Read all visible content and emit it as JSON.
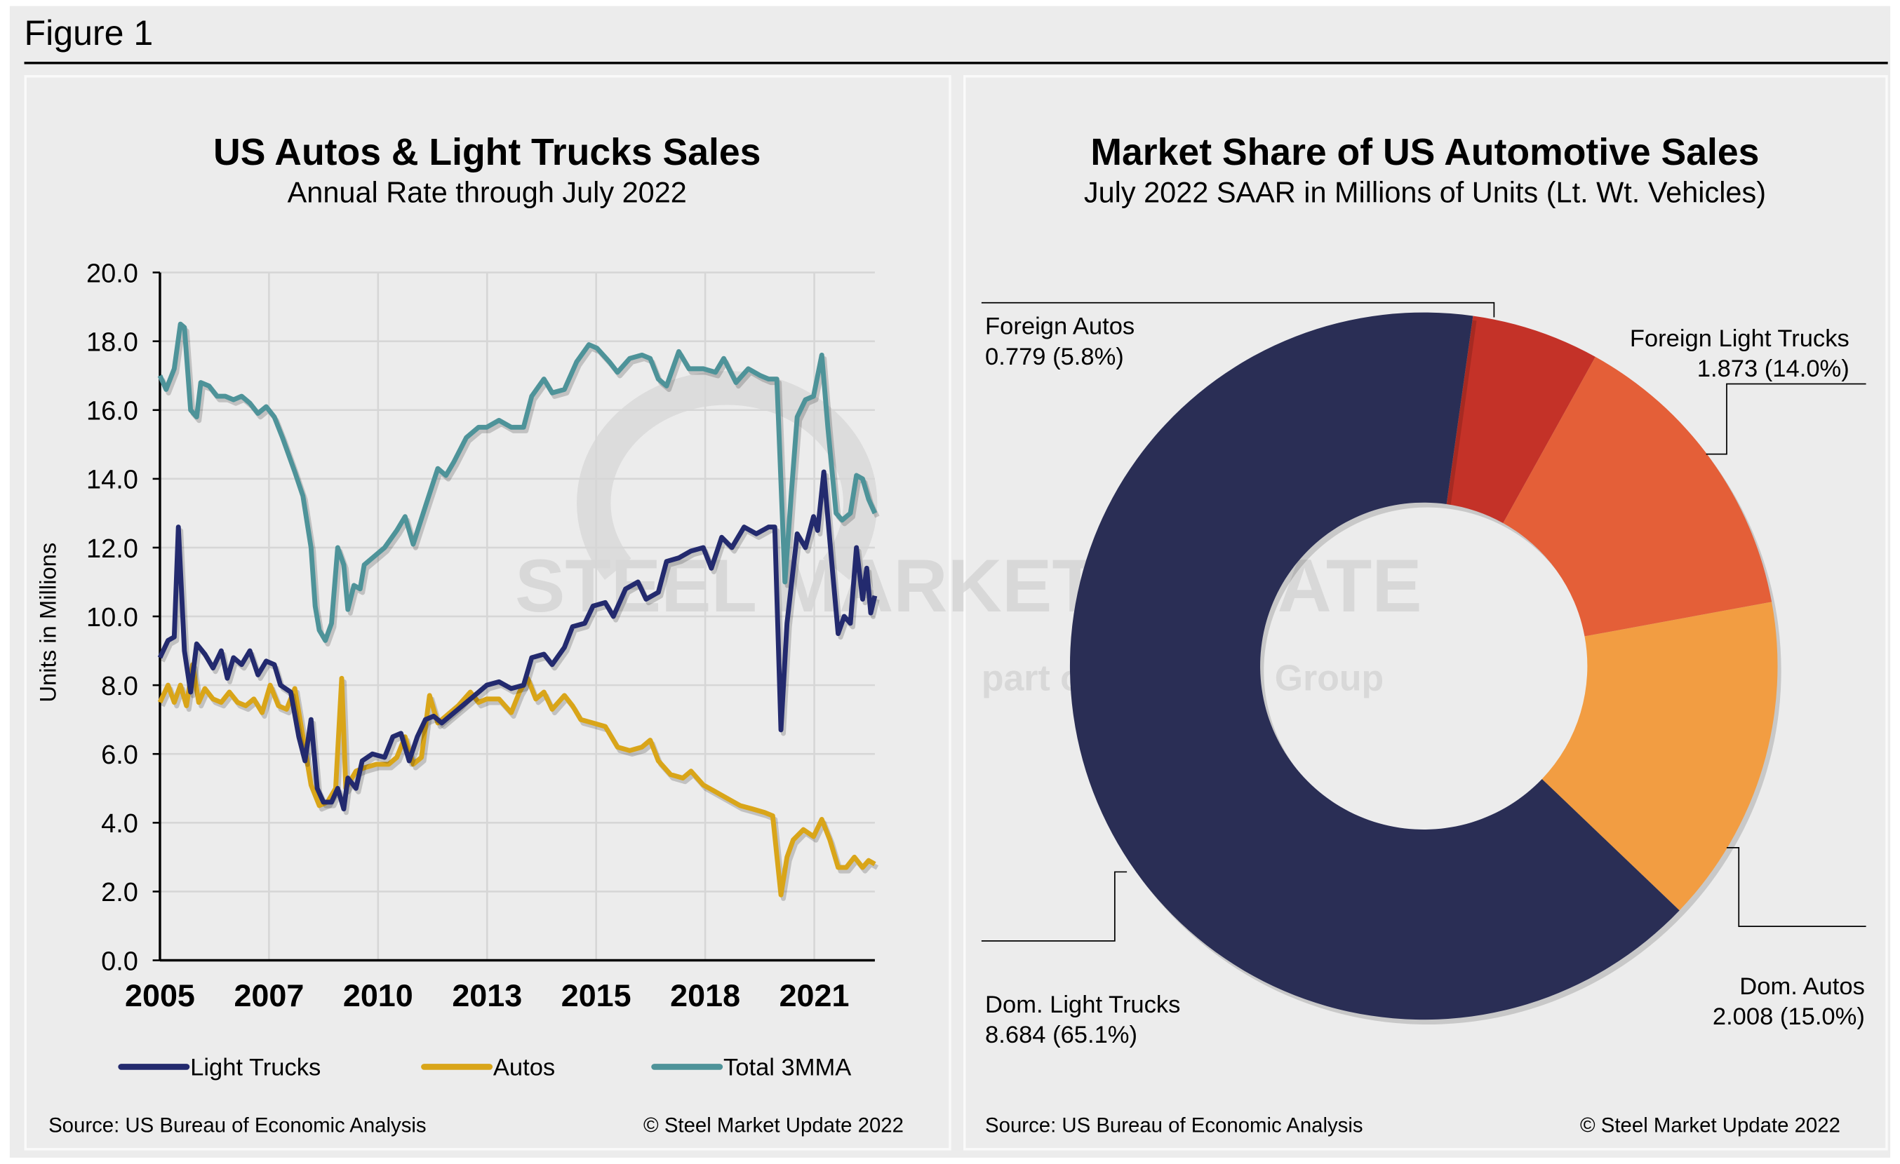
{
  "figure_title": "Figure 1",
  "watermark": {
    "brand": "STEEL MARKET UPDATE",
    "tagline_pre": "part of the",
    "tagline_logo": "CRU",
    "tagline_post": "Group"
  },
  "chart_data": [
    {
      "type": "line",
      "title": "US Autos & Light Trucks Sales",
      "subtitle": "Annual Rate through July 2022",
      "xlabel": "",
      "ylabel": "Units in Millions",
      "xlim": [
        2005.0,
        2022.5
      ],
      "ylim": [
        0,
        20
      ],
      "yticks": [
        "0.0",
        "2.0",
        "4.0",
        "6.0",
        "8.0",
        "10.0",
        "12.0",
        "14.0",
        "16.0",
        "18.0",
        "20.0"
      ],
      "xticks": [
        "2005",
        "2007",
        "2010",
        "2013",
        "2015",
        "2018",
        "2021"
      ],
      "grid": true,
      "legend_position": "bottom",
      "source": "Source: US Bureau of Economic Analysis",
      "copyright": "© Steel Market Update 2022",
      "series": [
        {
          "name": "Light Trucks",
          "color": "#232a6e",
          "x": [
            2005.0,
            2005.2,
            2005.35,
            2005.45,
            2005.6,
            2005.75,
            2005.9,
            2006.1,
            2006.3,
            2006.5,
            2006.65,
            2006.8,
            2007.0,
            2007.2,
            2007.4,
            2007.6,
            2007.8,
            2007.95,
            2008.2,
            2008.4,
            2008.55,
            2008.7,
            2008.85,
            2009.0,
            2009.2,
            2009.35,
            2009.5,
            2009.6,
            2009.8,
            2009.95,
            2010.2,
            2010.5,
            2010.7,
            2010.9,
            2011.1,
            2011.3,
            2011.5,
            2011.7,
            2011.9,
            2012.2,
            2012.5,
            2012.8,
            2013.0,
            2013.3,
            2013.6,
            2013.9,
            2014.1,
            2014.4,
            2014.6,
            2014.9,
            2015.1,
            2015.4,
            2015.6,
            2015.9,
            2016.1,
            2016.4,
            2016.7,
            2016.9,
            2017.2,
            2017.4,
            2017.7,
            2018.0,
            2018.3,
            2018.5,
            2018.75,
            2019.0,
            2019.3,
            2019.6,
            2019.9,
            2020.05,
            2020.2,
            2020.35,
            2020.6,
            2020.8,
            2021.0,
            2021.1,
            2021.25,
            2021.45,
            2021.6,
            2021.75,
            2021.9,
            2022.05,
            2022.2,
            2022.3,
            2022.4,
            2022.5
          ],
          "y": [
            8.8,
            9.3,
            9.4,
            12.6,
            9.0,
            7.8,
            9.2,
            8.9,
            8.5,
            9.0,
            8.2,
            8.8,
            8.6,
            9.0,
            8.3,
            8.7,
            8.6,
            8.0,
            7.8,
            6.5,
            5.8,
            7.0,
            5.0,
            4.6,
            4.6,
            5.0,
            4.4,
            5.3,
            5.0,
            5.8,
            6.0,
            5.9,
            6.5,
            6.6,
            5.8,
            6.5,
            7.0,
            7.1,
            6.9,
            7.2,
            7.5,
            7.8,
            8.0,
            8.1,
            7.9,
            8.0,
            8.8,
            8.9,
            8.6,
            9.1,
            9.7,
            9.8,
            10.3,
            10.4,
            10.0,
            10.8,
            11.0,
            10.5,
            10.7,
            11.6,
            11.7,
            11.9,
            12.0,
            11.4,
            12.3,
            12.0,
            12.6,
            12.4,
            12.6,
            12.6,
            6.7,
            9.8,
            12.4,
            12.0,
            12.9,
            12.5,
            14.2,
            11.5,
            9.5,
            10.0,
            9.8,
            12.0,
            10.5,
            11.4,
            10.1,
            10.6
          ]
        },
        {
          "name": "Autos",
          "color": "#d9a519",
          "x": [
            2005.0,
            2005.2,
            2005.35,
            2005.5,
            2005.65,
            2005.8,
            2005.95,
            2006.1,
            2006.3,
            2006.5,
            2006.7,
            2006.9,
            2007.1,
            2007.3,
            2007.5,
            2007.7,
            2007.9,
            2008.1,
            2008.3,
            2008.5,
            2008.7,
            2008.9,
            2009.1,
            2009.3,
            2009.45,
            2009.55,
            2009.8,
            2010.0,
            2010.3,
            2010.6,
            2010.8,
            2011.0,
            2011.2,
            2011.4,
            2011.6,
            2011.8,
            2012.0,
            2012.3,
            2012.6,
            2012.8,
            2013.0,
            2013.3,
            2013.6,
            2013.8,
            2014.0,
            2014.2,
            2014.4,
            2014.6,
            2014.9,
            2015.1,
            2015.3,
            2015.6,
            2015.9,
            2016.2,
            2016.5,
            2016.8,
            2017.0,
            2017.2,
            2017.5,
            2017.8,
            2018.0,
            2018.3,
            2018.6,
            2018.9,
            2019.2,
            2019.5,
            2019.8,
            2020.0,
            2020.2,
            2020.35,
            2020.5,
            2020.75,
            2021.0,
            2021.2,
            2021.4,
            2021.6,
            2021.8,
            2022.0,
            2022.2,
            2022.35,
            2022.5
          ],
          "y": [
            7.5,
            8.0,
            7.5,
            8.0,
            7.4,
            8.6,
            7.5,
            7.9,
            7.6,
            7.5,
            7.8,
            7.5,
            7.4,
            7.6,
            7.2,
            8.0,
            7.4,
            7.3,
            7.9,
            6.5,
            5.1,
            4.5,
            4.6,
            5.0,
            8.2,
            5.0,
            5.5,
            5.6,
            5.7,
            5.7,
            5.9,
            6.5,
            5.7,
            5.9,
            7.7,
            6.9,
            7.1,
            7.4,
            7.8,
            7.5,
            7.6,
            7.6,
            7.2,
            7.8,
            8.2,
            7.6,
            7.8,
            7.3,
            7.7,
            7.4,
            7.0,
            6.9,
            6.8,
            6.2,
            6.1,
            6.2,
            6.4,
            5.8,
            5.4,
            5.3,
            5.5,
            5.1,
            4.9,
            4.7,
            4.5,
            4.4,
            4.3,
            4.2,
            1.9,
            3.0,
            3.5,
            3.8,
            3.6,
            4.1,
            3.5,
            2.7,
            2.7,
            3.0,
            2.7,
            2.9,
            2.8
          ]
        },
        {
          "name": "Total 3MMA",
          "color": "#4e9399",
          "x": [
            2005.0,
            2005.15,
            2005.35,
            2005.5,
            2005.6,
            2005.75,
            2005.9,
            2006.0,
            2006.2,
            2006.4,
            2006.6,
            2006.8,
            2007.0,
            2007.2,
            2007.4,
            2007.6,
            2007.8,
            2008.0,
            2008.3,
            2008.5,
            2008.7,
            2008.8,
            2008.9,
            2009.05,
            2009.2,
            2009.35,
            2009.5,
            2009.6,
            2009.75,
            2009.9,
            2010.0,
            2010.3,
            2010.5,
            2010.8,
            2011.0,
            2011.2,
            2011.5,
            2011.8,
            2012.0,
            2012.2,
            2012.5,
            2012.8,
            2013.0,
            2013.3,
            2013.6,
            2013.9,
            2014.1,
            2014.4,
            2014.6,
            2014.9,
            2015.2,
            2015.5,
            2015.7,
            2016.0,
            2016.2,
            2016.5,
            2016.8,
            2017.0,
            2017.2,
            2017.4,
            2017.7,
            2017.95,
            2018.3,
            2018.6,
            2018.8,
            2019.1,
            2019.4,
            2019.7,
            2019.9,
            2020.1,
            2020.3,
            2020.45,
            2020.6,
            2020.8,
            2021.0,
            2021.2,
            2021.35,
            2021.55,
            2021.7,
            2021.9,
            2022.05,
            2022.2,
            2022.35,
            2022.5
          ],
          "y": [
            17.0,
            16.6,
            17.2,
            18.5,
            18.4,
            16.0,
            15.8,
            16.8,
            16.7,
            16.4,
            16.4,
            16.3,
            16.4,
            16.2,
            15.9,
            16.1,
            15.8,
            15.2,
            14.2,
            13.5,
            12.0,
            10.3,
            9.6,
            9.3,
            9.8,
            12.0,
            11.5,
            10.2,
            10.9,
            10.8,
            11.5,
            11.8,
            12.0,
            12.5,
            12.9,
            12.1,
            13.2,
            14.3,
            14.1,
            14.5,
            15.2,
            15.5,
            15.5,
            15.7,
            15.5,
            15.5,
            16.4,
            16.9,
            16.5,
            16.6,
            17.4,
            17.9,
            17.8,
            17.4,
            17.1,
            17.5,
            17.6,
            17.5,
            16.9,
            16.7,
            17.7,
            17.2,
            17.2,
            17.1,
            17.5,
            16.8,
            17.2,
            17.0,
            16.9,
            16.9,
            11.0,
            13.5,
            15.8,
            16.3,
            16.4,
            17.6,
            15.5,
            13.0,
            12.8,
            13.0,
            14.1,
            14.0,
            13.4,
            13.0
          ]
        }
      ]
    },
    {
      "type": "pie",
      "title": "Market Share of US Automotive Sales",
      "subtitle": "July 2022 SAAR in Millions of Units (Lt. Wt. Vehicles)",
      "donut": true,
      "source": "Source: US Bureau of Economic Analysis",
      "copyright": "© Steel Market Update 2022",
      "slices": [
        {
          "name": "Foreign Autos",
          "value": 0.779,
          "percent": 5.8,
          "value_label": "0.779 (5.8%)",
          "color": "#c43228"
        },
        {
          "name": "Foreign Light Trucks",
          "value": 1.873,
          "percent": 14.0,
          "value_label": "1.873 (14.0%)",
          "color": "#e45f38"
        },
        {
          "name": "Dom. Autos",
          "value": 2.008,
          "percent": 15.0,
          "value_label": "2.008 (15.0%)",
          "color": "#f29d42"
        },
        {
          "name": "Dom. Light Trucks",
          "value": 8.684,
          "percent": 65.1,
          "value_label": "8.684 (65.1%)",
          "color": "#2a2e55"
        }
      ]
    }
  ]
}
